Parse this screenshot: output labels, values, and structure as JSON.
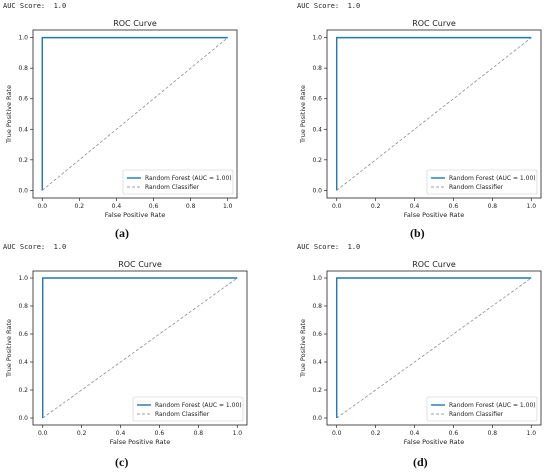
{
  "panels": [
    {
      "auc_label": "AUC Score:",
      "auc_value": "1.0",
      "caption": "(a)"
    },
    {
      "auc_label": "AUC Score:",
      "auc_value": "1.0",
      "caption": "(b)"
    },
    {
      "auc_label": "AUC Score:",
      "auc_value": "1.0",
      "caption": "(c)"
    },
    {
      "auc_label": "AUC Score:",
      "auc_value": "1.0",
      "caption": "(d)"
    }
  ],
  "chart_data": [
    {
      "type": "line",
      "title": "ROC Curve",
      "xlabel": "False Positive Rate",
      "ylabel": "True Positive Rate",
      "xlim": [
        0,
        1
      ],
      "ylim": [
        0,
        1
      ],
      "xticks": [
        "0.0",
        "0.2",
        "0.4",
        "0.6",
        "0.8",
        "1.0"
      ],
      "yticks": [
        "0.0",
        "0.2",
        "0.4",
        "0.6",
        "0.8",
        "1.0"
      ],
      "grid": false,
      "legend_position": "lower-right",
      "series": [
        {
          "name": "Random Forest (AUC = 1.00)",
          "color": "#1f77b4",
          "style": "solid",
          "x": [
            0,
            0,
            1
          ],
          "y": [
            0,
            1,
            1
          ]
        },
        {
          "name": "Random Classifier",
          "color": "#808080",
          "style": "dashed",
          "x": [
            0,
            1
          ],
          "y": [
            0,
            1
          ]
        }
      ]
    },
    {
      "type": "line",
      "title": "ROC Curve",
      "xlabel": "False Positive Rate",
      "ylabel": "True Positive Rate",
      "xlim": [
        0,
        1
      ],
      "ylim": [
        0,
        1
      ],
      "xticks": [
        "0.0",
        "0.2",
        "0.4",
        "0.6",
        "0.8",
        "1.0"
      ],
      "yticks": [
        "0.0",
        "0.2",
        "0.4",
        "0.6",
        "0.8",
        "1.0"
      ],
      "grid": false,
      "legend_position": "lower-right",
      "series": [
        {
          "name": "Random Forest (AUC = 1.00)",
          "color": "#1f77b4",
          "style": "solid",
          "x": [
            0,
            0,
            1
          ],
          "y": [
            0,
            1,
            1
          ]
        },
        {
          "name": "Random Classifier",
          "color": "#808080",
          "style": "dashed",
          "x": [
            0,
            1
          ],
          "y": [
            0,
            1
          ]
        }
      ]
    },
    {
      "type": "line",
      "title": "ROC Curve",
      "xlabel": "False Positive Rate",
      "ylabel": "True Positive Rate",
      "xlim": [
        0,
        1
      ],
      "ylim": [
        0,
        1
      ],
      "xticks": [
        "0.0",
        "0.2",
        "0.4",
        "0.6",
        "0.8",
        "1.0"
      ],
      "yticks": [
        "0.0",
        "0.2",
        "0.4",
        "0.6",
        "0.8",
        "1.0"
      ],
      "grid": false,
      "legend_position": "lower-right",
      "series": [
        {
          "name": "Random Forest (AUC = 1.00)",
          "color": "#1f77b4",
          "style": "solid",
          "x": [
            0,
            0,
            1
          ],
          "y": [
            0,
            1,
            1
          ]
        },
        {
          "name": "Random Classifier",
          "color": "#808080",
          "style": "dashed",
          "x": [
            0,
            1
          ],
          "y": [
            0,
            1
          ]
        }
      ]
    },
    {
      "type": "line",
      "title": "ROC Curve",
      "xlabel": "False Positive Rate",
      "ylabel": "True Positive Rate",
      "xlim": [
        0,
        1
      ],
      "ylim": [
        0,
        1
      ],
      "xticks": [
        "0.0",
        "0.2",
        "0.4",
        "0.6",
        "0.8",
        "1.0"
      ],
      "yticks": [
        "0.0",
        "0.2",
        "0.4",
        "0.6",
        "0.8",
        "1.0"
      ],
      "grid": false,
      "legend_position": "lower-right",
      "series": [
        {
          "name": "Random Forest (AUC = 1.00)",
          "color": "#1f77b4",
          "style": "solid",
          "x": [
            0,
            0,
            1
          ],
          "y": [
            0,
            1,
            1
          ]
        },
        {
          "name": "Random Classifier",
          "color": "#808080",
          "style": "dashed",
          "x": [
            0,
            1
          ],
          "y": [
            0,
            1
          ]
        }
      ]
    }
  ]
}
